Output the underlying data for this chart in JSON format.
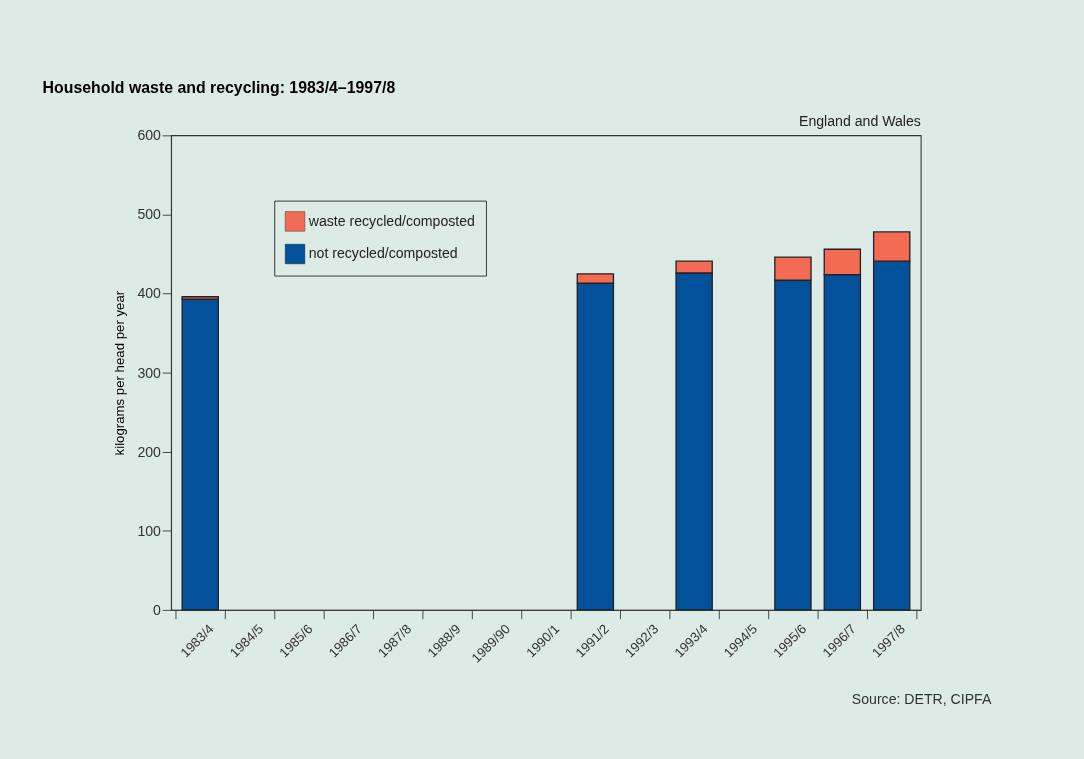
{
  "chart_data": {
    "type": "bar",
    "title": "Household waste and recycling: 1983/4–1997/8",
    "subtitle": "England and Wales",
    "ylabel": "kilograms per head per year",
    "categories": [
      "1983/4",
      "1984/5",
      "1985/6",
      "1986/7",
      "1987/8",
      "1988/9",
      "1989/90",
      "1990/1",
      "1991/2",
      "1992/3",
      "1993/4",
      "1994/5",
      "1995/6",
      "1996/7",
      "1997/8"
    ],
    "series": [
      {
        "name": "not recycled/composted",
        "color": "#02519a",
        "values": [
          393,
          null,
          null,
          null,
          null,
          null,
          null,
          null,
          413,
          null,
          426,
          null,
          417,
          424,
          441
        ]
      },
      {
        "name": "waste recycled/composted",
        "color": "#f26b52",
        "values": [
          3,
          null,
          null,
          null,
          null,
          null,
          null,
          null,
          12,
          null,
          15,
          null,
          29,
          32,
          37
        ]
      }
    ],
    "stacked": true,
    "ylim": [
      0,
      600
    ],
    "yticks": [
      0,
      100,
      200,
      300,
      400,
      500,
      600
    ],
    "grid": false,
    "legend": "top left",
    "annotations": [
      "Source: DETR, CIPFA"
    ]
  }
}
